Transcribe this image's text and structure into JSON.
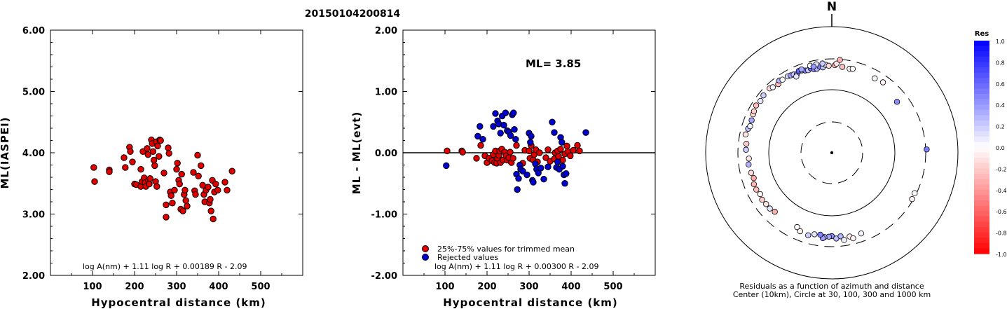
{
  "title": "20150104200814",
  "chart_data": [
    {
      "type": "scatter",
      "ylabel": "ML(IASPEI)",
      "xlabel": "Hypocentral distance (km)",
      "xlim": [
        0,
        600
      ],
      "ylim": [
        2.0,
        6.0
      ],
      "xticks": [
        "100",
        "200",
        "300",
        "400",
        "500"
      ],
      "xtick_values": [
        100,
        200,
        300,
        400,
        500
      ],
      "yticks": [
        "2.00",
        "3.00",
        "4.00",
        "5.00",
        "6.00"
      ],
      "ytick_values": [
        2,
        3,
        4,
        5,
        6
      ],
      "formula": "log A(nm) + 1.11 log R + 0.00189 R - 2.09",
      "marker_color": "#e00000",
      "points": [
        [
          103,
          3.76
        ],
        [
          105,
          3.53
        ],
        [
          140,
          3.72
        ],
        [
          140,
          3.69
        ],
        [
          175,
          3.92
        ],
        [
          178,
          3.76
        ],
        [
          188,
          4.09
        ],
        [
          190,
          4.02
        ],
        [
          195,
          3.85
        ],
        [
          200,
          3.49
        ],
        [
          204,
          3.48
        ],
        [
          215,
          3.73
        ],
        [
          215,
          3.45
        ],
        [
          218,
          3.53
        ],
        [
          220,
          4.02
        ],
        [
          223,
          3.59
        ],
        [
          225,
          3.51
        ],
        [
          227,
          3.45
        ],
        [
          230,
          4.07
        ],
        [
          232,
          3.97
        ],
        [
          233,
          3.55
        ],
        [
          235,
          3.49
        ],
        [
          237,
          3.58
        ],
        [
          240,
          4.21
        ],
        [
          242,
          4.15
        ],
        [
          244,
          4.02
        ],
        [
          246,
          3.88
        ],
        [
          248,
          3.79
        ],
        [
          250,
          3.53
        ],
        [
          252,
          4.18
        ],
        [
          253,
          3.45
        ],
        [
          255,
          4.11
        ],
        [
          258,
          3.94
        ],
        [
          260,
          4.21
        ],
        [
          262,
          4.2
        ],
        [
          270,
          3.67
        ],
        [
          275,
          3.15
        ],
        [
          275,
          2.95
        ],
        [
          280,
          4.08
        ],
        [
          282,
          3.99
        ],
        [
          285,
          3.36
        ],
        [
          287,
          3.3
        ],
        [
          290,
          3.18
        ],
        [
          295,
          3.39
        ],
        [
          300,
          3.73
        ],
        [
          302,
          3.83
        ],
        [
          305,
          3.55
        ],
        [
          307,
          3.49
        ],
        [
          310,
          3.08
        ],
        [
          312,
          3.65
        ],
        [
          315,
          3.05
        ],
        [
          318,
          3.32
        ],
        [
          320,
          3.39
        ],
        [
          322,
          3.22
        ],
        [
          325,
          3.13
        ],
        [
          340,
          3.68
        ],
        [
          343,
          3.38
        ],
        [
          345,
          3.32
        ],
        [
          350,
          3.96
        ],
        [
          352,
          3.62
        ],
        [
          358,
          3.79
        ],
        [
          362,
          3.47
        ],
        [
          365,
          3.32
        ],
        [
          367,
          3.2
        ],
        [
          370,
          3.39
        ],
        [
          375,
          3.44
        ],
        [
          378,
          3.18
        ],
        [
          380,
          3.24
        ],
        [
          382,
          3.05
        ],
        [
          385,
          3.55
        ],
        [
          387,
          2.92
        ],
        [
          390,
          3.36
        ],
        [
          393,
          3.49
        ],
        [
          398,
          3.39
        ],
        [
          415,
          3.52
        ],
        [
          420,
          3.39
        ],
        [
          432,
          3.7
        ]
      ]
    },
    {
      "type": "scatter",
      "ylabel": "ML - ML(evt)",
      "xlabel": "Hypocentral distance (km)",
      "xlim": [
        0,
        600
      ],
      "ylim": [
        -2.0,
        2.0
      ],
      "xticks": [
        "100",
        "200",
        "300",
        "400",
        "500"
      ],
      "xtick_values": [
        100,
        200,
        300,
        400,
        500
      ],
      "yticks": [
        "-2.00",
        "-1.00",
        "0.00",
        "1.00",
        "2.00"
      ],
      "ytick_values": [
        -2,
        -1,
        0,
        1,
        2
      ],
      "annotation": "ML= 3.85",
      "formula": "log A(nm) + 1.11 log R + 0.00300 R - 2.09",
      "legend": [
        {
          "label": "25%-75% values for trimmed mean",
          "color": "#e00000"
        },
        {
          "label": "Rejected values",
          "color": "#0000d0"
        }
      ],
      "series": [
        {
          "name": "25%-75% values for trimmed mean",
          "color": "#e00000",
          "points": [
            [
              105,
              0.03
            ],
            [
              140,
              0.03
            ],
            [
              142,
              0.01
            ],
            [
              175,
              -0.09
            ],
            [
              185,
              0.12
            ],
            [
              195,
              -0.05
            ],
            [
              200,
              -0.16
            ],
            [
              205,
              -0.09
            ],
            [
              212,
              -0.13
            ],
            [
              215,
              -0.03
            ],
            [
              218,
              -0.16
            ],
            [
              220,
              0.03
            ],
            [
              223,
              -0.17
            ],
            [
              225,
              -0.09
            ],
            [
              228,
              -0.04
            ],
            [
              230,
              0.03
            ],
            [
              232,
              -0.16
            ],
            [
              235,
              0.06
            ],
            [
              238,
              -0.12
            ],
            [
              242,
              0.01
            ],
            [
              245,
              -0.05
            ],
            [
              248,
              -0.12
            ],
            [
              252,
              -0.08
            ],
            [
              255,
              0.01
            ],
            [
              258,
              -0.16
            ],
            [
              262,
              -0.09
            ],
            [
              270,
              0.12
            ],
            [
              285,
              -0.17
            ],
            [
              290,
              0.04
            ],
            [
              300,
              0.03
            ],
            [
              302,
              -0.09
            ],
            [
              305,
              0.12
            ],
            [
              310,
              -0.12
            ],
            [
              312,
              -0.03
            ],
            [
              316,
              0.05
            ],
            [
              320,
              -0.15
            ],
            [
              325,
              0.0
            ],
            [
              340,
              -0.08
            ],
            [
              345,
              0.05
            ],
            [
              350,
              -0.14
            ],
            [
              360,
              -0.1
            ],
            [
              362,
              0.0
            ],
            [
              368,
              0.03
            ],
            [
              370,
              -0.06
            ],
            [
              375,
              0.06
            ],
            [
              380,
              -0.12
            ],
            [
              385,
              -0.02
            ],
            [
              390,
              0.11
            ],
            [
              392,
              0.02
            ],
            [
              398,
              -0.05
            ],
            [
              405,
              0.04
            ],
            [
              415,
              0.12
            ],
            [
              420,
              0.03
            ]
          ]
        },
        {
          "name": "Rejected values",
          "color": "#0000d0",
          "points": [
            [
              103,
              -0.21
            ],
            [
              178,
              0.27
            ],
            [
              183,
              0.43
            ],
            [
              190,
              0.22
            ],
            [
              215,
              0.43
            ],
            [
              220,
              0.64
            ],
            [
              225,
              0.52
            ],
            [
              228,
              0.47
            ],
            [
              232,
              0.32
            ],
            [
              236,
              0.6
            ],
            [
              240,
              0.45
            ],
            [
              244,
              0.65
            ],
            [
              248,
              0.36
            ],
            [
              252,
              0.34
            ],
            [
              256,
              0.28
            ],
            [
              260,
              0.62
            ],
            [
              263,
              0.65
            ],
            [
              265,
              0.38
            ],
            [
              268,
              0.22
            ],
            [
              270,
              -0.35
            ],
            [
              272,
              -0.6
            ],
            [
              275,
              -0.42
            ],
            [
              278,
              -0.2
            ],
            [
              280,
              -0.27
            ],
            [
              285,
              -0.3
            ],
            [
              295,
              -0.36
            ],
            [
              300,
              0.32
            ],
            [
              303,
              0.17
            ],
            [
              305,
              0.27
            ],
            [
              308,
              -0.45
            ],
            [
              310,
              -0.48
            ],
            [
              315,
              -0.18
            ],
            [
              318,
              -0.27
            ],
            [
              322,
              -0.33
            ],
            [
              328,
              -0.25
            ],
            [
              335,
              -0.43
            ],
            [
              345,
              -0.23
            ],
            [
              355,
              0.5
            ],
            [
              360,
              0.33
            ],
            [
              365,
              -0.24
            ],
            [
              368,
              -0.15
            ],
            [
              372,
              -0.27
            ],
            [
              375,
              0.25
            ],
            [
              378,
              0.17
            ],
            [
              380,
              -0.22
            ],
            [
              383,
              -0.36
            ],
            [
              385,
              -0.5
            ],
            [
              388,
              -0.34
            ],
            [
              435,
              0.33
            ]
          ]
        }
      ]
    },
    {
      "type": "scatter",
      "subtype": "polar",
      "north_label": "N",
      "caption": [
        "Residuals as a function of azimuth and distance",
        "Center (10km), Circle at 30, 100, 300 and 1000 km"
      ],
      "rings_km": [
        30,
        100,
        300,
        1000
      ],
      "colorbar": {
        "title": "Res",
        "labels": [
          "1.0",
          "0.8",
          "0.6",
          "0.4",
          "0.2",
          "0.0",
          "-0.2",
          "-0.4",
          "-0.6",
          "-0.8",
          "-1.0"
        ],
        "max_color": "#0000ff",
        "zero_color": "#ffffff",
        "min_color": "#ff0000"
      },
      "points_azimuth_deg_distance_km_residual": [
        [
          2,
          245,
          -0.3
        ],
        [
          3,
          260,
          -0.1
        ],
        [
          7,
          235,
          -0.25
        ],
        [
          12,
          230,
          -0.05
        ],
        [
          14,
          235,
          0.0
        ],
        [
          5,
          300,
          -0.3
        ],
        [
          30,
          230,
          0.02
        ],
        [
          36,
          240,
          -0.05
        ],
        [
          52,
          205,
          0.45
        ],
        [
          88,
          320,
          0.5
        ],
        [
          116,
          290,
          0.0
        ],
        [
          120,
          295,
          -0.05
        ],
        [
          180,
          210,
          0.45
        ],
        [
          182,
          215,
          0.35
        ],
        [
          185,
          220,
          0.3
        ],
        [
          186,
          230,
          0.4
        ],
        [
          188,
          205,
          0.5
        ],
        [
          177,
          230,
          0.25
        ],
        [
          174,
          215,
          0.3
        ],
        [
          192,
          210,
          0.1
        ],
        [
          196,
          230,
          0.2
        ],
        [
          172,
          250,
          0.05
        ],
        [
          168,
          228,
          -0.08
        ],
        [
          166,
          250,
          -0.05
        ],
        [
          160,
          230,
          0.05
        ],
        [
          205,
          200,
          0.0
        ],
        [
          202,
          220,
          -0.05
        ],
        [
          224,
          200,
          -0.3
        ],
        [
          228,
          210,
          0.1
        ],
        [
          232,
          210,
          -0.1
        ],
        [
          236,
          215,
          -0.2
        ],
        [
          240,
          205,
          -0.05
        ],
        [
          244,
          215,
          -0.25
        ],
        [
          248,
          215,
          -0.3
        ],
        [
          252,
          200,
          -0.35
        ],
        [
          256,
          208,
          -0.15
        ],
        [
          262,
          215,
          0.3
        ],
        [
          266,
          208,
          -0.1
        ],
        [
          272,
          230,
          0.2
        ],
        [
          276,
          230,
          -0.2
        ],
        [
          282,
          250,
          -0.1
        ],
        [
          286,
          240,
          0.25
        ],
        [
          288,
          230,
          0.05
        ],
        [
          292,
          235,
          0.35
        ],
        [
          296,
          245,
          -0.15
        ],
        [
          298,
          250,
          -0.2
        ],
        [
          302,
          260,
          -0.25
        ],
        [
          306,
          250,
          0.1
        ],
        [
          310,
          260,
          0.2
        ],
        [
          316,
          262,
          -0.15
        ],
        [
          318,
          250,
          0.05
        ],
        [
          322,
          240,
          -0.25
        ],
        [
          324,
          260,
          0.3
        ],
        [
          326,
          250,
          0.0
        ],
        [
          330,
          250,
          0.15
        ],
        [
          332,
          245,
          0.35
        ],
        [
          334,
          240,
          0.25
        ],
        [
          336,
          230,
          0.45
        ],
        [
          338,
          250,
          0.6
        ],
        [
          340,
          245,
          0.4
        ],
        [
          342,
          235,
          0.5
        ],
        [
          344,
          230,
          0.2
        ],
        [
          346,
          240,
          0.55
        ],
        [
          348,
          225,
          0.45
        ],
        [
          350,
          225,
          0.3
        ],
        [
          352,
          240,
          0.5
        ],
        [
          354,
          230,
          0.25
        ],
        [
          356,
          250,
          0.1
        ],
        [
          358,
          240,
          -0.15
        ],
        [
          346,
          265,
          0.0
        ],
        [
          350,
          265,
          0.1
        ],
        [
          354,
          265,
          0.2
        ],
        [
          340,
          255,
          0.35
        ],
        [
          335,
          215,
          0.1
        ],
        [
          348,
          250,
          0.4
        ]
      ]
    }
  ]
}
